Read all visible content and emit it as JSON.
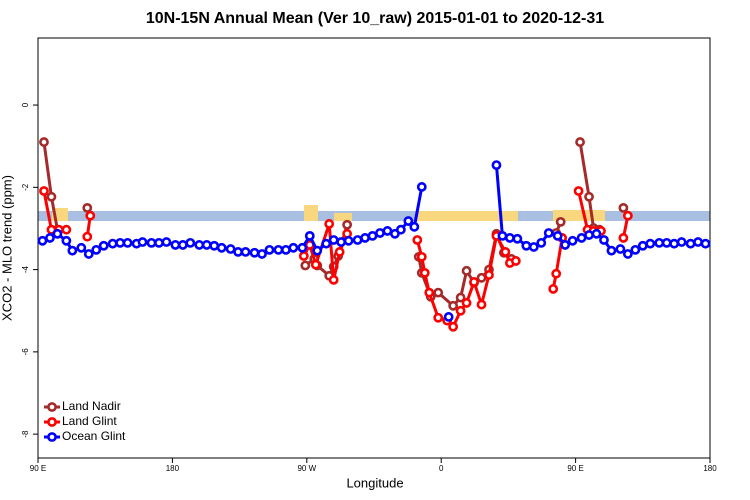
{
  "chart_data": {
    "type": "line",
    "title": "10N-15N Annual Mean (Ver 10_raw)   2015-01-01 to 2020-12-31",
    "x_label": "Longitude",
    "y_label": "XCO2 - MLO trend (ppm)",
    "xlim": [
      90,
      540
    ],
    "ylim": [
      -8.58,
      1.63
    ],
    "xticks": [
      {
        "value": 90,
        "label": "90 E"
      },
      {
        "value": 180,
        "label": "180"
      },
      {
        "value": 270,
        "label": "90 W"
      },
      {
        "value": 360,
        "label": "0"
      },
      {
        "value": 450,
        "label": "90 E"
      },
      {
        "value": 540,
        "label": "180"
      }
    ],
    "yticks": [
      0,
      -2,
      -4,
      -6,
      -8
    ],
    "legend": "bottom-left",
    "series": [
      {
        "name": "Land Nadir",
        "color": "#a52a2a",
        "x": [
          94,
          99,
          103,
          null,
          123,
          null,
          269,
          275,
          277,
          285,
          288,
          291,
          297,
          null,
          345,
          347,
          353,
          358,
          368,
          373,
          377,
          382,
          387,
          392,
          397,
          402,
          407,
          null,
          437,
          440,
          null,
          453,
          459,
          462,
          466,
          null,
          482
        ],
        "values": [
          -0.9,
          -2.23,
          -3.03,
          null,
          -2.5,
          null,
          -3.9,
          -3.74,
          -3.9,
          -4.15,
          -3.93,
          -3.67,
          -2.91,
          null,
          -3.69,
          -4.08,
          -4.66,
          -4.56,
          -4.88,
          -4.68,
          -4.03,
          -4.32,
          -4.2,
          -4.0,
          -3.13,
          -3.59,
          -3.74,
          null,
          -3.11,
          -2.84,
          null,
          -0.9,
          -2.23,
          -2.99,
          -3.03,
          null,
          -2.5
        ]
      },
      {
        "name": "Land Glint",
        "color": "#ff0000",
        "x": [
          94,
          99,
          104,
          109,
          null,
          123,
          125,
          null,
          268,
          272,
          276,
          285,
          288,
          292,
          297,
          null,
          344,
          347,
          349,
          352,
          358,
          364,
          368,
          373,
          377,
          382,
          387,
          392,
          397,
          403,
          406,
          410,
          null,
          435,
          437,
          441,
          null,
          452,
          458,
          462,
          467,
          null,
          482,
          485
        ],
        "values": [
          -2.09,
          -3.03,
          -3.03,
          -3.03,
          null,
          -3.2,
          -2.69,
          null,
          -3.67,
          -3.4,
          -3.88,
          -2.89,
          -4.25,
          -3.57,
          -3.13,
          null,
          -3.28,
          -3.69,
          -4.08,
          -4.56,
          -5.17,
          -5.24,
          -5.39,
          -5.0,
          -4.81,
          -4.3,
          -4.85,
          -4.13,
          -3.18,
          -3.57,
          -3.84,
          -3.79,
          null,
          -4.47,
          -4.1,
          -3.23,
          null,
          -2.09,
          -3.03,
          -3.06,
          -3.06,
          null,
          -3.23,
          -2.69
        ]
      },
      {
        "name": "Ocean Glint",
        "color": "#0000ff",
        "x": [
          93,
          98,
          103,
          109,
          113,
          119,
          124,
          129,
          134,
          140,
          145,
          150,
          156,
          160,
          166,
          171,
          176,
          182,
          187,
          192,
          198,
          203,
          208,
          213,
          219,
          224,
          229,
          235,
          240,
          245,
          251,
          256,
          261,
          267,
          272,
          277,
          283,
          288,
          293,
          298,
          304,
          309,
          314,
          319,
          324,
          329,
          333,
          338,
          342,
          347,
          null,
          365,
          null,
          397,
          401,
          406,
          411,
          417,
          422,
          427,
          432,
          438,
          443,
          448,
          454,
          459,
          464,
          469,
          474,
          480,
          485,
          490,
          495,
          500,
          506,
          511,
          516,
          521,
          527,
          532,
          537
        ],
        "values": [
          -3.3,
          -3.23,
          -3.13,
          -3.3,
          -3.54,
          -3.47,
          -3.62,
          -3.52,
          -3.42,
          -3.37,
          -3.35,
          -3.35,
          -3.37,
          -3.33,
          -3.35,
          -3.35,
          -3.33,
          -3.4,
          -3.4,
          -3.35,
          -3.4,
          -3.4,
          -3.42,
          -3.47,
          -3.5,
          -3.57,
          -3.57,
          -3.59,
          -3.62,
          -3.52,
          -3.52,
          -3.52,
          -3.47,
          -3.47,
          -3.18,
          -3.54,
          -3.37,
          -3.28,
          -3.33,
          -3.3,
          -3.28,
          -3.23,
          -3.18,
          -3.11,
          -3.06,
          -3.13,
          -3.03,
          -2.82,
          -2.96,
          -1.99,
          null,
          -5.15,
          null,
          -1.46,
          -3.18,
          -3.23,
          -3.25,
          -3.42,
          -3.45,
          -3.35,
          -3.11,
          -3.18,
          -3.4,
          -3.3,
          -3.23,
          -3.16,
          -3.13,
          -3.28,
          -3.54,
          -3.5,
          -3.62,
          -3.52,
          -3.42,
          -3.37,
          -3.35,
          -3.35,
          -3.37,
          -3.33,
          -3.37,
          -3.33,
          -3.37
        ]
      }
    ]
  }
}
